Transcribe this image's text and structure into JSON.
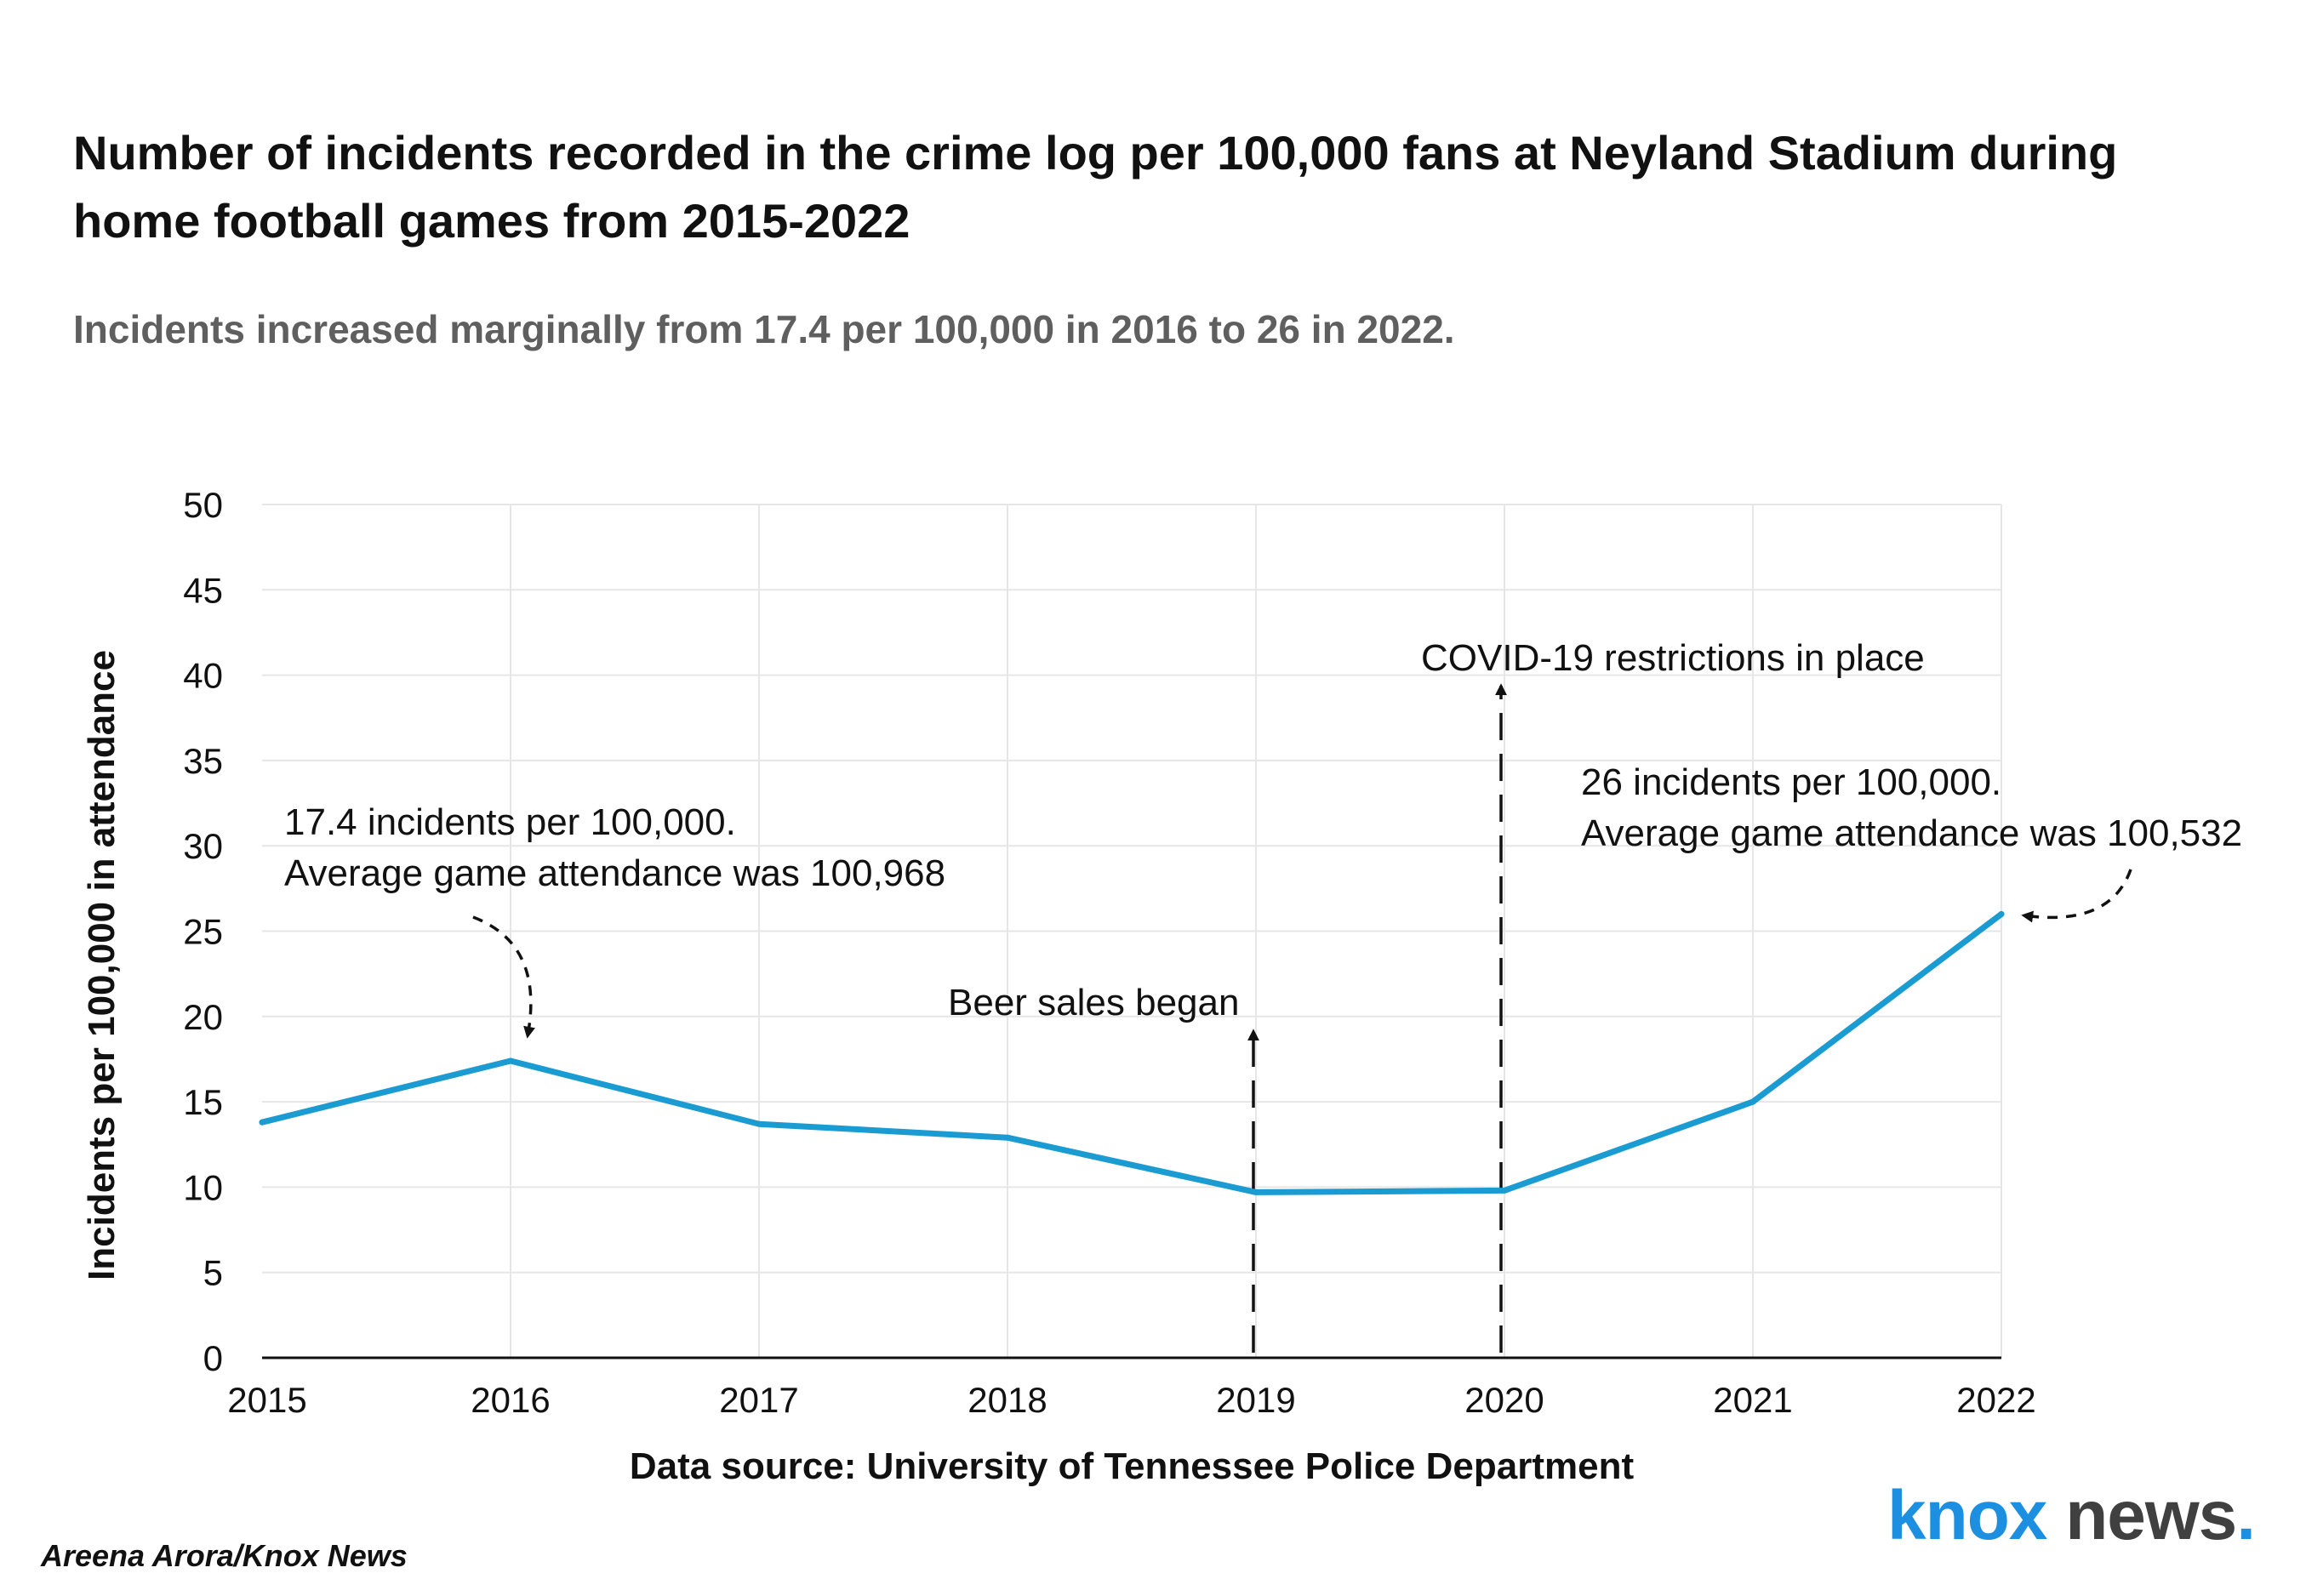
{
  "title": "Number of incidents recorded in the crime log per 100,000 fans at Neyland Stadium during home football games from 2015-2022",
  "subtitle": "Incidents increased marginally from 17.4 per 100,000 in 2016 to 26 in 2022.",
  "credit": "Areena Arora/Knox News",
  "logo": {
    "word1": "knox",
    "word2": "news",
    "dot": "."
  },
  "colors": {
    "line": "#1a9bd1",
    "grid": "#e6e6e6",
    "logo_blue": "#1c8fe0",
    "logo_gray": "#404040"
  },
  "chart_data": {
    "type": "line",
    "x": [
      2015,
      2016,
      2017,
      2018,
      2019,
      2020,
      2021,
      2022
    ],
    "series": [
      {
        "values": [
          13.8,
          17.4,
          13.7,
          12.9,
          9.7,
          9.8,
          15.0,
          26.0
        ]
      }
    ],
    "xlabel": "Data source: University of Tennessee Police Department",
    "ylabel": "Incidents per 100,000 in attendance",
    "ylim": [
      0,
      50
    ],
    "yticks": [
      0,
      5,
      10,
      15,
      20,
      25,
      30,
      35,
      40,
      45,
      50
    ],
    "grid": true,
    "annotations": [
      {
        "id": "ann2016",
        "lines": [
          "17.4 incidents per 100,000.",
          "Average game attendance was 100,968"
        ],
        "x": 2016,
        "y": 17.4
      },
      {
        "id": "ann2019",
        "lines": [
          "Beer sales began"
        ],
        "x": 2019,
        "y": 20
      },
      {
        "id": "ann2020",
        "lines": [
          "COVID-19 restrictions in place"
        ],
        "x": 2020,
        "y": 40
      },
      {
        "id": "ann2022",
        "lines": [
          "26 incidents per 100,000.",
          "Average game attendance was 100,532"
        ],
        "x": 2022,
        "y": 26
      }
    ]
  }
}
